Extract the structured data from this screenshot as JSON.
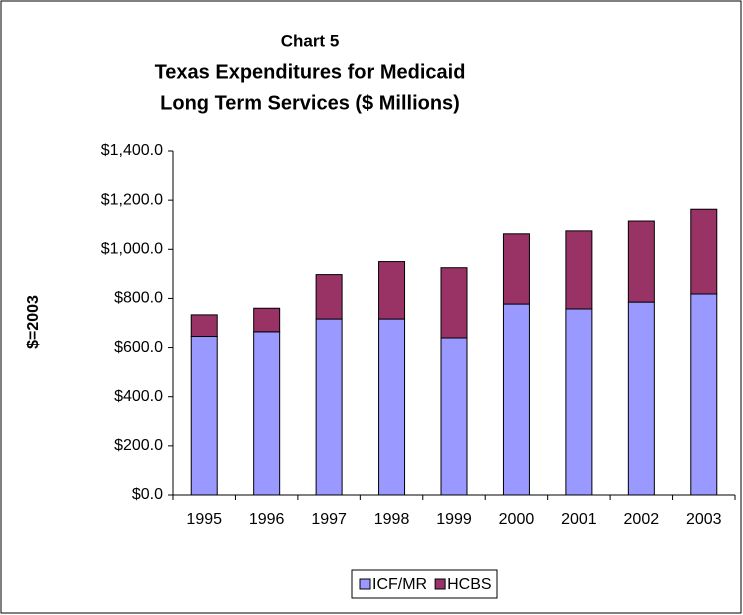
{
  "chart_data": {
    "type": "stacked_bar",
    "title": [
      "Chart 5",
      "Texas Expenditures for Medicaid",
      "Long Term Services ($ Millions)"
    ],
    "y_label": "$=2003",
    "categories": [
      "1995",
      "1996",
      "1997",
      "1998",
      "1999",
      "2000",
      "2001",
      "2002",
      "2003"
    ],
    "series": [
      {
        "name": "ICF/MR",
        "color": "#9999ff",
        "values": [
          645,
          664,
          716,
          716,
          639,
          777,
          757,
          785,
          818
        ]
      },
      {
        "name": "HCBS",
        "color": "#993366",
        "values": [
          88,
          96,
          181,
          234,
          286,
          286,
          318,
          330,
          345
        ]
      }
    ],
    "ylim": [
      0,
      1400
    ],
    "yticks": [
      {
        "value": 0,
        "label": "$0.0"
      },
      {
        "value": 200,
        "label": "$200.0"
      },
      {
        "value": 400,
        "label": "$400.0"
      },
      {
        "value": 600,
        "label": "$600.0"
      },
      {
        "value": 800,
        "label": "$800.0"
      },
      {
        "value": 1000,
        "label": "$1,000.0"
      },
      {
        "value": 1200,
        "label": "$1,200.0"
      },
      {
        "value": 1400,
        "label": "$1,400.0"
      }
    ],
    "grid": false,
    "legend": "bottom"
  }
}
